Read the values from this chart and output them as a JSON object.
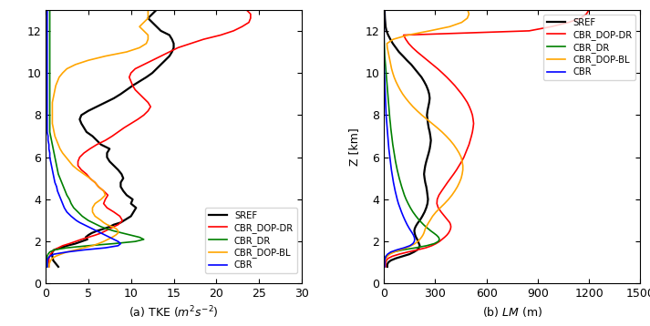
{
  "panel_a_xlabel": "(a) TKE $(m^2s^{-2})$",
  "panel_b_xlabel": "(b) $LM$ (m)",
  "ylabel_b": "Z [km]",
  "xlim_a": [
    0,
    30
  ],
  "xlim_b": [
    0,
    1500
  ],
  "ylim": [
    0,
    13
  ],
  "xticks_a": [
    0,
    5,
    10,
    15,
    20,
    25,
    30
  ],
  "xticks_b": [
    0,
    300,
    600,
    900,
    1200,
    1500
  ],
  "yticks": [
    0,
    2,
    4,
    6,
    8,
    10,
    12
  ],
  "legend_labels": [
    "SREF",
    "CBR_DOP-DR",
    "CBR_DR",
    "CBR_DOP-BL",
    "CBR"
  ],
  "colors": [
    "black",
    "red",
    "green",
    "orange",
    "blue"
  ],
  "linewidths": [
    1.6,
    1.2,
    1.2,
    1.2,
    1.2
  ],
  "tke_z": [
    0.8,
    0.9,
    1.0,
    1.1,
    1.2,
    1.3,
    1.4,
    1.5,
    1.6,
    1.7,
    1.8,
    1.9,
    2.0,
    2.1,
    2.2,
    2.3,
    2.4,
    2.5,
    2.6,
    2.7,
    2.8,
    2.9,
    3.0,
    3.2,
    3.4,
    3.6,
    3.8,
    4.0,
    4.2,
    4.4,
    4.6,
    4.8,
    5.0,
    5.2,
    5.4,
    5.6,
    5.8,
    6.0,
    6.2,
    6.4,
    6.6,
    6.8,
    7.0,
    7.2,
    7.4,
    7.6,
    7.8,
    8.0,
    8.2,
    8.4,
    8.6,
    8.8,
    9.0,
    9.2,
    9.4,
    9.6,
    9.8,
    10.0,
    10.2,
    10.4,
    10.6,
    10.8,
    11.0,
    11.2,
    11.4,
    11.6,
    11.8,
    12.0,
    12.2,
    12.4,
    12.6,
    12.8,
    13.0
  ],
  "tke_SREF": [
    1.5,
    1.3,
    1.1,
    0.9,
    0.85,
    0.8,
    0.75,
    0.8,
    1.0,
    1.8,
    2.5,
    3.5,
    4.2,
    4.9,
    4.7,
    5.0,
    5.4,
    6.0,
    6.8,
    7.5,
    8.0,
    8.8,
    9.2,
    10.0,
    10.3,
    10.6,
    10.0,
    10.2,
    9.5,
    9.1,
    8.8,
    8.8,
    9.1,
    8.9,
    8.5,
    8.0,
    7.5,
    7.2,
    7.2,
    7.5,
    6.5,
    6.0,
    5.5,
    4.8,
    4.5,
    4.2,
    4.0,
    4.2,
    5.0,
    6.0,
    7.0,
    8.0,
    8.8,
    9.5,
    10.2,
    11.0,
    11.8,
    12.5,
    13.0,
    13.5,
    14.0,
    14.5,
    14.8,
    15.0,
    15.0,
    14.8,
    14.5,
    13.5,
    13.0,
    12.5,
    12.0,
    12.5,
    13.0
  ],
  "tke_CBR_DOP_DR": [
    0.4,
    0.4,
    0.4,
    0.4,
    0.4,
    0.5,
    0.6,
    0.8,
    1.0,
    1.5,
    2.0,
    2.8,
    3.5,
    4.2,
    5.0,
    5.8,
    6.5,
    7.0,
    7.5,
    8.0,
    8.5,
    8.8,
    9.0,
    8.7,
    8.0,
    7.2,
    6.8,
    7.0,
    7.3,
    6.8,
    6.2,
    5.8,
    5.2,
    4.8,
    4.2,
    3.8,
    3.8,
    4.0,
    4.5,
    5.2,
    6.0,
    7.0,
    7.8,
    8.5,
    9.2,
    10.0,
    10.8,
    11.5,
    12.0,
    12.3,
    12.0,
    11.5,
    11.0,
    10.5,
    10.2,
    10.0,
    9.8,
    10.0,
    10.5,
    11.5,
    12.5,
    13.5,
    14.5,
    15.5,
    17.0,
    18.5,
    20.5,
    22.0,
    23.0,
    23.8,
    24.0,
    24.0,
    23.5
  ],
  "tke_CBR_DR": [
    0.2,
    0.2,
    0.2,
    0.2,
    0.2,
    0.2,
    0.3,
    0.5,
    1.0,
    2.5,
    5.0,
    8.0,
    10.5,
    11.5,
    11.0,
    10.0,
    9.0,
    8.0,
    7.2,
    6.5,
    6.0,
    5.5,
    5.0,
    4.3,
    3.8,
    3.3,
    3.0,
    2.8,
    2.5,
    2.3,
    2.1,
    1.9,
    1.7,
    1.5,
    1.4,
    1.3,
    1.2,
    1.1,
    1.0,
    0.9,
    0.8,
    0.7,
    0.6,
    0.5,
    0.5,
    0.5,
    0.5,
    0.5,
    0.5,
    0.5,
    0.5,
    0.5,
    0.5,
    0.5,
    0.5,
    0.5,
    0.5,
    0.5,
    0.5,
    0.5,
    0.5,
    0.5,
    0.5,
    0.5,
    0.5,
    0.5,
    0.5,
    0.5,
    0.5,
    0.5,
    0.5,
    0.5,
    0.5
  ],
  "tke_CBR_DOP_BL": [
    0.4,
    0.4,
    0.5,
    0.6,
    0.8,
    1.2,
    1.8,
    2.5,
    3.5,
    4.5,
    5.5,
    6.2,
    6.8,
    7.3,
    7.8,
    8.2,
    8.5,
    8.5,
    8.3,
    7.8,
    7.2,
    6.8,
    6.5,
    5.8,
    5.5,
    5.5,
    5.8,
    6.5,
    7.0,
    6.8,
    6.2,
    5.8,
    5.2,
    4.5,
    3.8,
    3.2,
    2.8,
    2.4,
    2.0,
    1.7,
    1.5,
    1.3,
    1.1,
    1.0,
    0.9,
    0.8,
    0.8,
    0.8,
    0.8,
    0.8,
    0.8,
    0.9,
    1.0,
    1.1,
    1.2,
    1.4,
    1.6,
    2.0,
    2.5,
    3.5,
    5.0,
    7.0,
    9.5,
    11.0,
    11.8,
    12.0,
    12.0,
    11.5,
    11.0,
    11.5,
    12.0,
    12.0,
    12.0
  ],
  "tke_CBR": [
    0.2,
    0.2,
    0.2,
    0.2,
    0.3,
    0.5,
    1.0,
    2.5,
    4.5,
    7.0,
    8.5,
    8.8,
    8.5,
    8.0,
    7.5,
    7.0,
    6.5,
    6.0,
    5.5,
    5.0,
    4.5,
    4.0,
    3.6,
    3.0,
    2.5,
    2.2,
    2.0,
    1.8,
    1.6,
    1.4,
    1.3,
    1.1,
    1.0,
    0.9,
    0.8,
    0.7,
    0.6,
    0.5,
    0.5,
    0.4,
    0.4,
    0.3,
    0.3,
    0.2,
    0.2,
    0.2,
    0.2,
    0.2,
    0.2,
    0.2,
    0.2,
    0.2,
    0.2,
    0.2,
    0.2,
    0.2,
    0.2,
    0.2,
    0.2,
    0.2,
    0.2,
    0.2,
    0.2,
    0.2,
    0.2,
    0.2,
    0.2,
    0.2,
    0.2,
    0.2,
    0.2,
    0.2,
    0.2
  ],
  "lm_z": [
    0.8,
    0.9,
    1.0,
    1.1,
    1.2,
    1.3,
    1.4,
    1.5,
    1.6,
    1.7,
    1.8,
    1.9,
    2.0,
    2.1,
    2.2,
    2.3,
    2.4,
    2.5,
    2.6,
    2.7,
    2.8,
    2.9,
    3.0,
    3.2,
    3.4,
    3.6,
    3.8,
    4.0,
    4.2,
    4.4,
    4.6,
    4.8,
    5.0,
    5.2,
    5.4,
    5.6,
    5.8,
    6.0,
    6.2,
    6.4,
    6.6,
    6.8,
    7.0,
    7.2,
    7.4,
    7.6,
    7.8,
    8.0,
    8.2,
    8.4,
    8.6,
    8.8,
    9.0,
    9.2,
    9.4,
    9.6,
    9.8,
    10.0,
    10.2,
    10.4,
    10.6,
    10.8,
    11.0,
    11.2,
    11.4,
    11.6,
    11.8,
    12.0,
    12.2,
    12.4,
    12.6,
    12.8,
    13.0
  ],
  "lm_SREF": [
    20,
    20,
    25,
    40,
    70,
    110,
    150,
    175,
    195,
    205,
    210,
    205,
    200,
    195,
    188,
    183,
    180,
    178,
    180,
    185,
    192,
    200,
    210,
    225,
    238,
    248,
    255,
    258,
    255,
    252,
    248,
    242,
    238,
    235,
    238,
    242,
    248,
    255,
    262,
    268,
    272,
    275,
    272,
    268,
    262,
    258,
    255,
    252,
    255,
    260,
    265,
    268,
    265,
    258,
    248,
    235,
    220,
    200,
    180,
    160,
    135,
    112,
    88,
    70,
    52,
    38,
    25,
    15,
    10,
    8,
    6,
    5,
    4
  ],
  "lm_CBR_DOP_DR": [
    10,
    10,
    10,
    15,
    25,
    50,
    90,
    140,
    195,
    245,
    280,
    305,
    325,
    340,
    355,
    368,
    378,
    385,
    390,
    392,
    390,
    385,
    375,
    355,
    335,
    318,
    310,
    312,
    322,
    338,
    355,
    372,
    390,
    408,
    425,
    440,
    455,
    468,
    478,
    488,
    498,
    505,
    512,
    518,
    522,
    525,
    522,
    518,
    510,
    500,
    488,
    472,
    455,
    435,
    415,
    392,
    368,
    342,
    315,
    285,
    255,
    225,
    195,
    168,
    145,
    128,
    115,
    850,
    980,
    1080,
    1150,
    1185,
    1200
  ],
  "lm_CBR_DR": [
    5,
    5,
    5,
    5,
    8,
    12,
    25,
    55,
    110,
    185,
    250,
    295,
    318,
    325,
    320,
    308,
    292,
    275,
    260,
    245,
    232,
    220,
    208,
    188,
    170,
    155,
    142,
    130,
    120,
    112,
    104,
    97,
    90,
    84,
    78,
    73,
    68,
    64,
    60,
    56,
    52,
    49,
    46,
    43,
    40,
    38,
    35,
    33,
    31,
    29,
    27,
    25,
    23,
    21,
    19,
    17,
    15,
    13,
    11,
    9,
    7,
    5,
    4,
    3,
    2,
    1,
    0.5,
    0.5,
    0.5,
    0.5,
    0.5,
    0.5,
    0.5
  ],
  "lm_CBR_DOP_BL": [
    5,
    5,
    5,
    8,
    12,
    20,
    35,
    60,
    95,
    130,
    160,
    182,
    198,
    210,
    220,
    228,
    234,
    238,
    242,
    248,
    255,
    262,
    270,
    285,
    305,
    330,
    355,
    378,
    398,
    415,
    430,
    442,
    452,
    458,
    462,
    462,
    458,
    452,
    440,
    425,
    408,
    388,
    365,
    340,
    312,
    282,
    252,
    222,
    195,
    170,
    148,
    128,
    110,
    95,
    82,
    70,
    60,
    52,
    45,
    40,
    35,
    30,
    25,
    20,
    18,
    55,
    140,
    268,
    385,
    455,
    488,
    498,
    490
  ],
  "lm_CBR": [
    5,
    5,
    5,
    5,
    8,
    12,
    22,
    40,
    75,
    118,
    152,
    170,
    178,
    180,
    178,
    173,
    166,
    158,
    150,
    143,
    136,
    130,
    124,
    113,
    103,
    94,
    85,
    78,
    72,
    66,
    61,
    56,
    52,
    48,
    44,
    41,
    38,
    35,
    32,
    29,
    27,
    25,
    23,
    21,
    19,
    17,
    15,
    13,
    12,
    11,
    10,
    9,
    8,
    7,
    6,
    5,
    4,
    3,
    2,
    1,
    1,
    1,
    1,
    1,
    1,
    1,
    1,
    1,
    1,
    1,
    1,
    1,
    1
  ]
}
